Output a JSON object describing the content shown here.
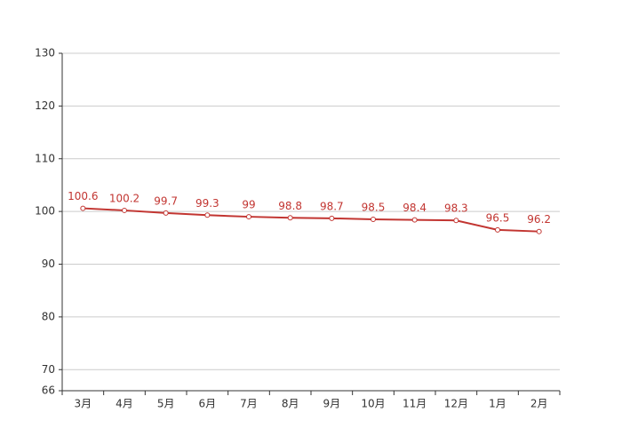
{
  "chart_data": {
    "type": "line",
    "categories": [
      "3月",
      "4月",
      "5月",
      "6月",
      "7月",
      "8月",
      "9月",
      "10月",
      "11月",
      "12月",
      "1月",
      "2月"
    ],
    "series": [
      {
        "color": "#c23531",
        "values": [
          100.6,
          100.2,
          99.7,
          99.3,
          99,
          98.8,
          98.7,
          98.5,
          98.4,
          98.3,
          96.5,
          96.2
        ]
      }
    ],
    "ylim": [
      66,
      130
    ],
    "yticks": [
      66,
      70,
      80,
      90,
      100,
      110,
      120,
      130
    ],
    "grid": true
  }
}
